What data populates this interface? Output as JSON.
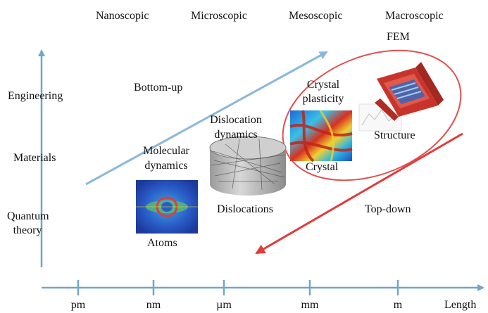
{
  "scales": [
    "Nanoscopic",
    "Microscopic",
    "Mesoscopic",
    "Macroscopic"
  ],
  "fem_label": "FEM",
  "y_levels": {
    "engineering": "Engineering",
    "materials": "Materials",
    "quantum_line1": "Quantum",
    "quantum_line2": "theory"
  },
  "x_ticks": [
    "pm",
    "nm",
    "µm",
    "mm",
    "m"
  ],
  "x_axis_label": "Length",
  "approaches": {
    "bottom_up": "Bottom-up",
    "top_down": "Top-down"
  },
  "methods": {
    "md_line1": "Molecular",
    "md_line2": "dynamics",
    "dd_line1": "Dislocation",
    "dd_line2": "dynamics",
    "cp_line1": "Crystal",
    "cp_line2": "plasticity"
  },
  "objects": {
    "atoms": "Atoms",
    "dislocations": "Dislocations",
    "crystal": "Crystal",
    "structure": "Structure"
  },
  "colors": {
    "axis": "#6fa6cc",
    "bottom_up_arrow": "#8ab8d8",
    "top_down_arrow": "#e23b3b",
    "ellipse": "#e05050"
  }
}
